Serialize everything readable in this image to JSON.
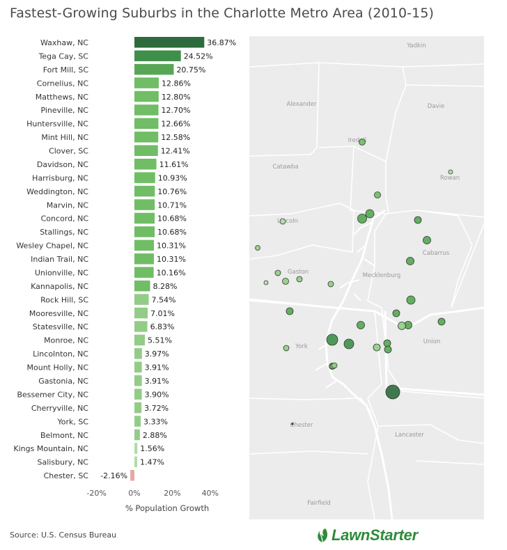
{
  "title": "Fastest-Growing Suburbs in the Charlotte Metro Area (2010-15)",
  "source": "Source: U.S. Census Bureau",
  "logo": {
    "text": "LawnStarter",
    "icon": "leaf-swirl-icon"
  },
  "colors": {
    "bar_top": "#2e6b3c",
    "bar_second": "#3f8f4a",
    "bar_third": "#58a655",
    "bar_mid": "#70bd65",
    "bar_low": "#93cc86",
    "bar_lowest": "#b3dba8",
    "bar_negative": "#e6a99f",
    "map_bg": "#ececec",
    "map_water": "#ffffff",
    "map_borders": "#ffffff",
    "logo_green": "#2f8a3a"
  },
  "chart_data": {
    "type": "bar",
    "orientation": "horizontal",
    "title": "Fastest-Growing Suburbs in the Charlotte Metro Area (2010-15)",
    "xlabel": "% Population Growth",
    "ylabel": "",
    "xlim": [
      -20,
      40
    ],
    "xticks": [
      -20,
      0,
      20,
      40
    ],
    "xtick_labels": [
      "-20%",
      "0%",
      "20%",
      "40%"
    ],
    "grid": false,
    "categories": [
      "Waxhaw, NC",
      "Tega Cay, SC",
      "Fort Mill, SC",
      "Cornelius, NC",
      "Matthews, NC",
      "Pineville, NC",
      "Huntersville, NC",
      "Mint Hill, NC",
      "Clover, SC",
      "Davidson, NC",
      "Harrisburg, NC",
      "Weddington, NC",
      "Marvin, NC",
      "Concord, NC",
      "Stallings, NC",
      "Wesley Chapel, NC",
      "Indian Trail, NC",
      "Unionville, NC",
      "Kannapolis, NC",
      "Rock Hill, SC",
      "Mooresville, NC",
      "Statesville, NC",
      "Monroe, NC",
      "Lincolnton, NC",
      "Mount Holly, NC",
      "Gastonia, NC",
      "Bessemer City, NC",
      "Cherryville, NC",
      "York, SC",
      "Belmont, NC",
      "Kings Mountain, NC",
      "Salisbury, NC",
      "Chester, SC"
    ],
    "values": [
      36.87,
      24.52,
      20.75,
      12.86,
      12.8,
      12.7,
      12.66,
      12.58,
      12.41,
      11.61,
      10.93,
      10.76,
      10.71,
      10.68,
      10.68,
      10.31,
      10.31,
      10.16,
      8.28,
      7.54,
      7.01,
      6.83,
      5.51,
      3.97,
      3.91,
      3.91,
      3.9,
      3.72,
      3.33,
      2.88,
      1.56,
      1.47,
      -2.16
    ],
    "value_labels": [
      "36.87%",
      "24.52%",
      "20.75%",
      "12.86%",
      "12.80%",
      "12.70%",
      "12.66%",
      "12.58%",
      "12.41%",
      "11.61%",
      "10.93%",
      "10.76%",
      "10.71%",
      "10.68%",
      "10.68%",
      "10.31%",
      "10.31%",
      "10.16%",
      "8.28%",
      "7.54%",
      "7.01%",
      "6.83%",
      "5.51%",
      "3.97%",
      "3.91%",
      "3.91%",
      "3.90%",
      "3.72%",
      "3.33%",
      "2.88%",
      "1.56%",
      "1.47%",
      "-2.16%"
    ]
  },
  "map": {
    "county_labels": [
      "Yadkin",
      "Alexander",
      "Davie",
      "Iredell",
      "Catawba",
      "Rowan",
      "Lincoln",
      "Cabarrus",
      "Gaston",
      "Mecklenburg",
      "York",
      "Union",
      "Chester",
      "Lancaster",
      "Fairfield"
    ]
  }
}
